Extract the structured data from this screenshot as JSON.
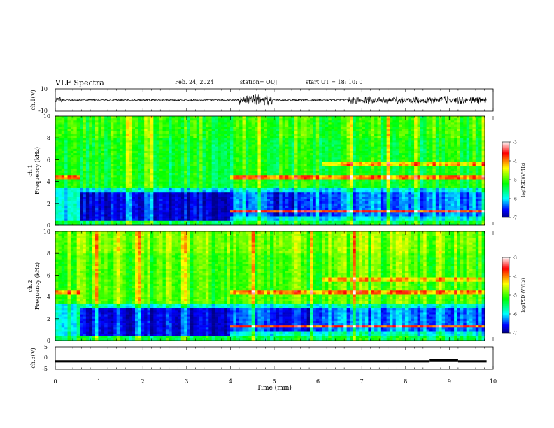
{
  "header": {
    "title": "VLF Spectra",
    "date": "Feb. 24, 2024",
    "station": "station= OUJ",
    "start": "start UT =  18: 10: 0"
  },
  "chart_data": [
    {
      "type": "line",
      "panel": "ch1-waveform",
      "ylabel": "ch.1(V)",
      "ylim": [
        -10,
        10
      ],
      "ytick_labels": [
        "10",
        "-10"
      ],
      "xlim": [
        0,
        10
      ],
      "description_of_trace": "noisy waveform around 0 V, bursts near 4.2-4.9 min and 6.8-9.8 min",
      "color": "#000000"
    },
    {
      "type": "heatmap",
      "panel": "ch1-spectrogram",
      "ylabel": "ch.1\nFrequency (kHz)",
      "ylim": [
        0,
        10
      ],
      "ytick_labels": [
        "0",
        "2",
        "4",
        "6",
        "8",
        "10"
      ],
      "xlim": [
        0,
        10
      ],
      "colorbar": {
        "label": "log(PSD)(V²/Hz)",
        "range": [
          -7,
          -3
        ],
        "tick_labels": [
          "-3",
          "-4",
          "-5",
          "-6",
          "-7"
        ]
      }
    },
    {
      "type": "heatmap",
      "panel": "ch2-spectrogram",
      "ylabel": "ch.2\nFrequency (kHz)",
      "ylim": [
        0,
        10
      ],
      "ytick_labels": [
        "0",
        "2",
        "4",
        "6",
        "8",
        "10"
      ],
      "xlim": [
        0,
        10
      ],
      "colorbar": {
        "label": "log(PSD)(V²/Hz)",
        "range": [
          -7,
          -3
        ],
        "tick_labels": [
          "-3",
          "-4",
          "-5",
          "-6",
          "-7"
        ]
      }
    },
    {
      "type": "line",
      "panel": "ch3-waveform",
      "ylabel": "ch.3(V)",
      "ylim": [
        -5,
        5
      ],
      "ytick_labels": [
        "5",
        "0",
        "-5"
      ],
      "xlim": [
        0,
        10
      ],
      "xlabel": "Time (min)",
      "xtick_labels": [
        "0",
        "1",
        "2",
        "3",
        "4",
        "5",
        "6",
        "7",
        "8",
        "9",
        "10"
      ],
      "segments": [
        {
          "x": [
            0,
            8.55
          ],
          "y": -1.5
        },
        {
          "x": [
            8.55,
            9.2
          ],
          "y": -1.0
        },
        {
          "x": [
            9.2,
            9.85
          ],
          "y": -1.5
        }
      ],
      "color": "#000000"
    }
  ],
  "colors": {
    "colormap": [
      "#ffffff",
      "#ff0000",
      "#ffff00",
      "#00ff00",
      "#00ffff",
      "#0000ff",
      "#00008b"
    ]
  }
}
